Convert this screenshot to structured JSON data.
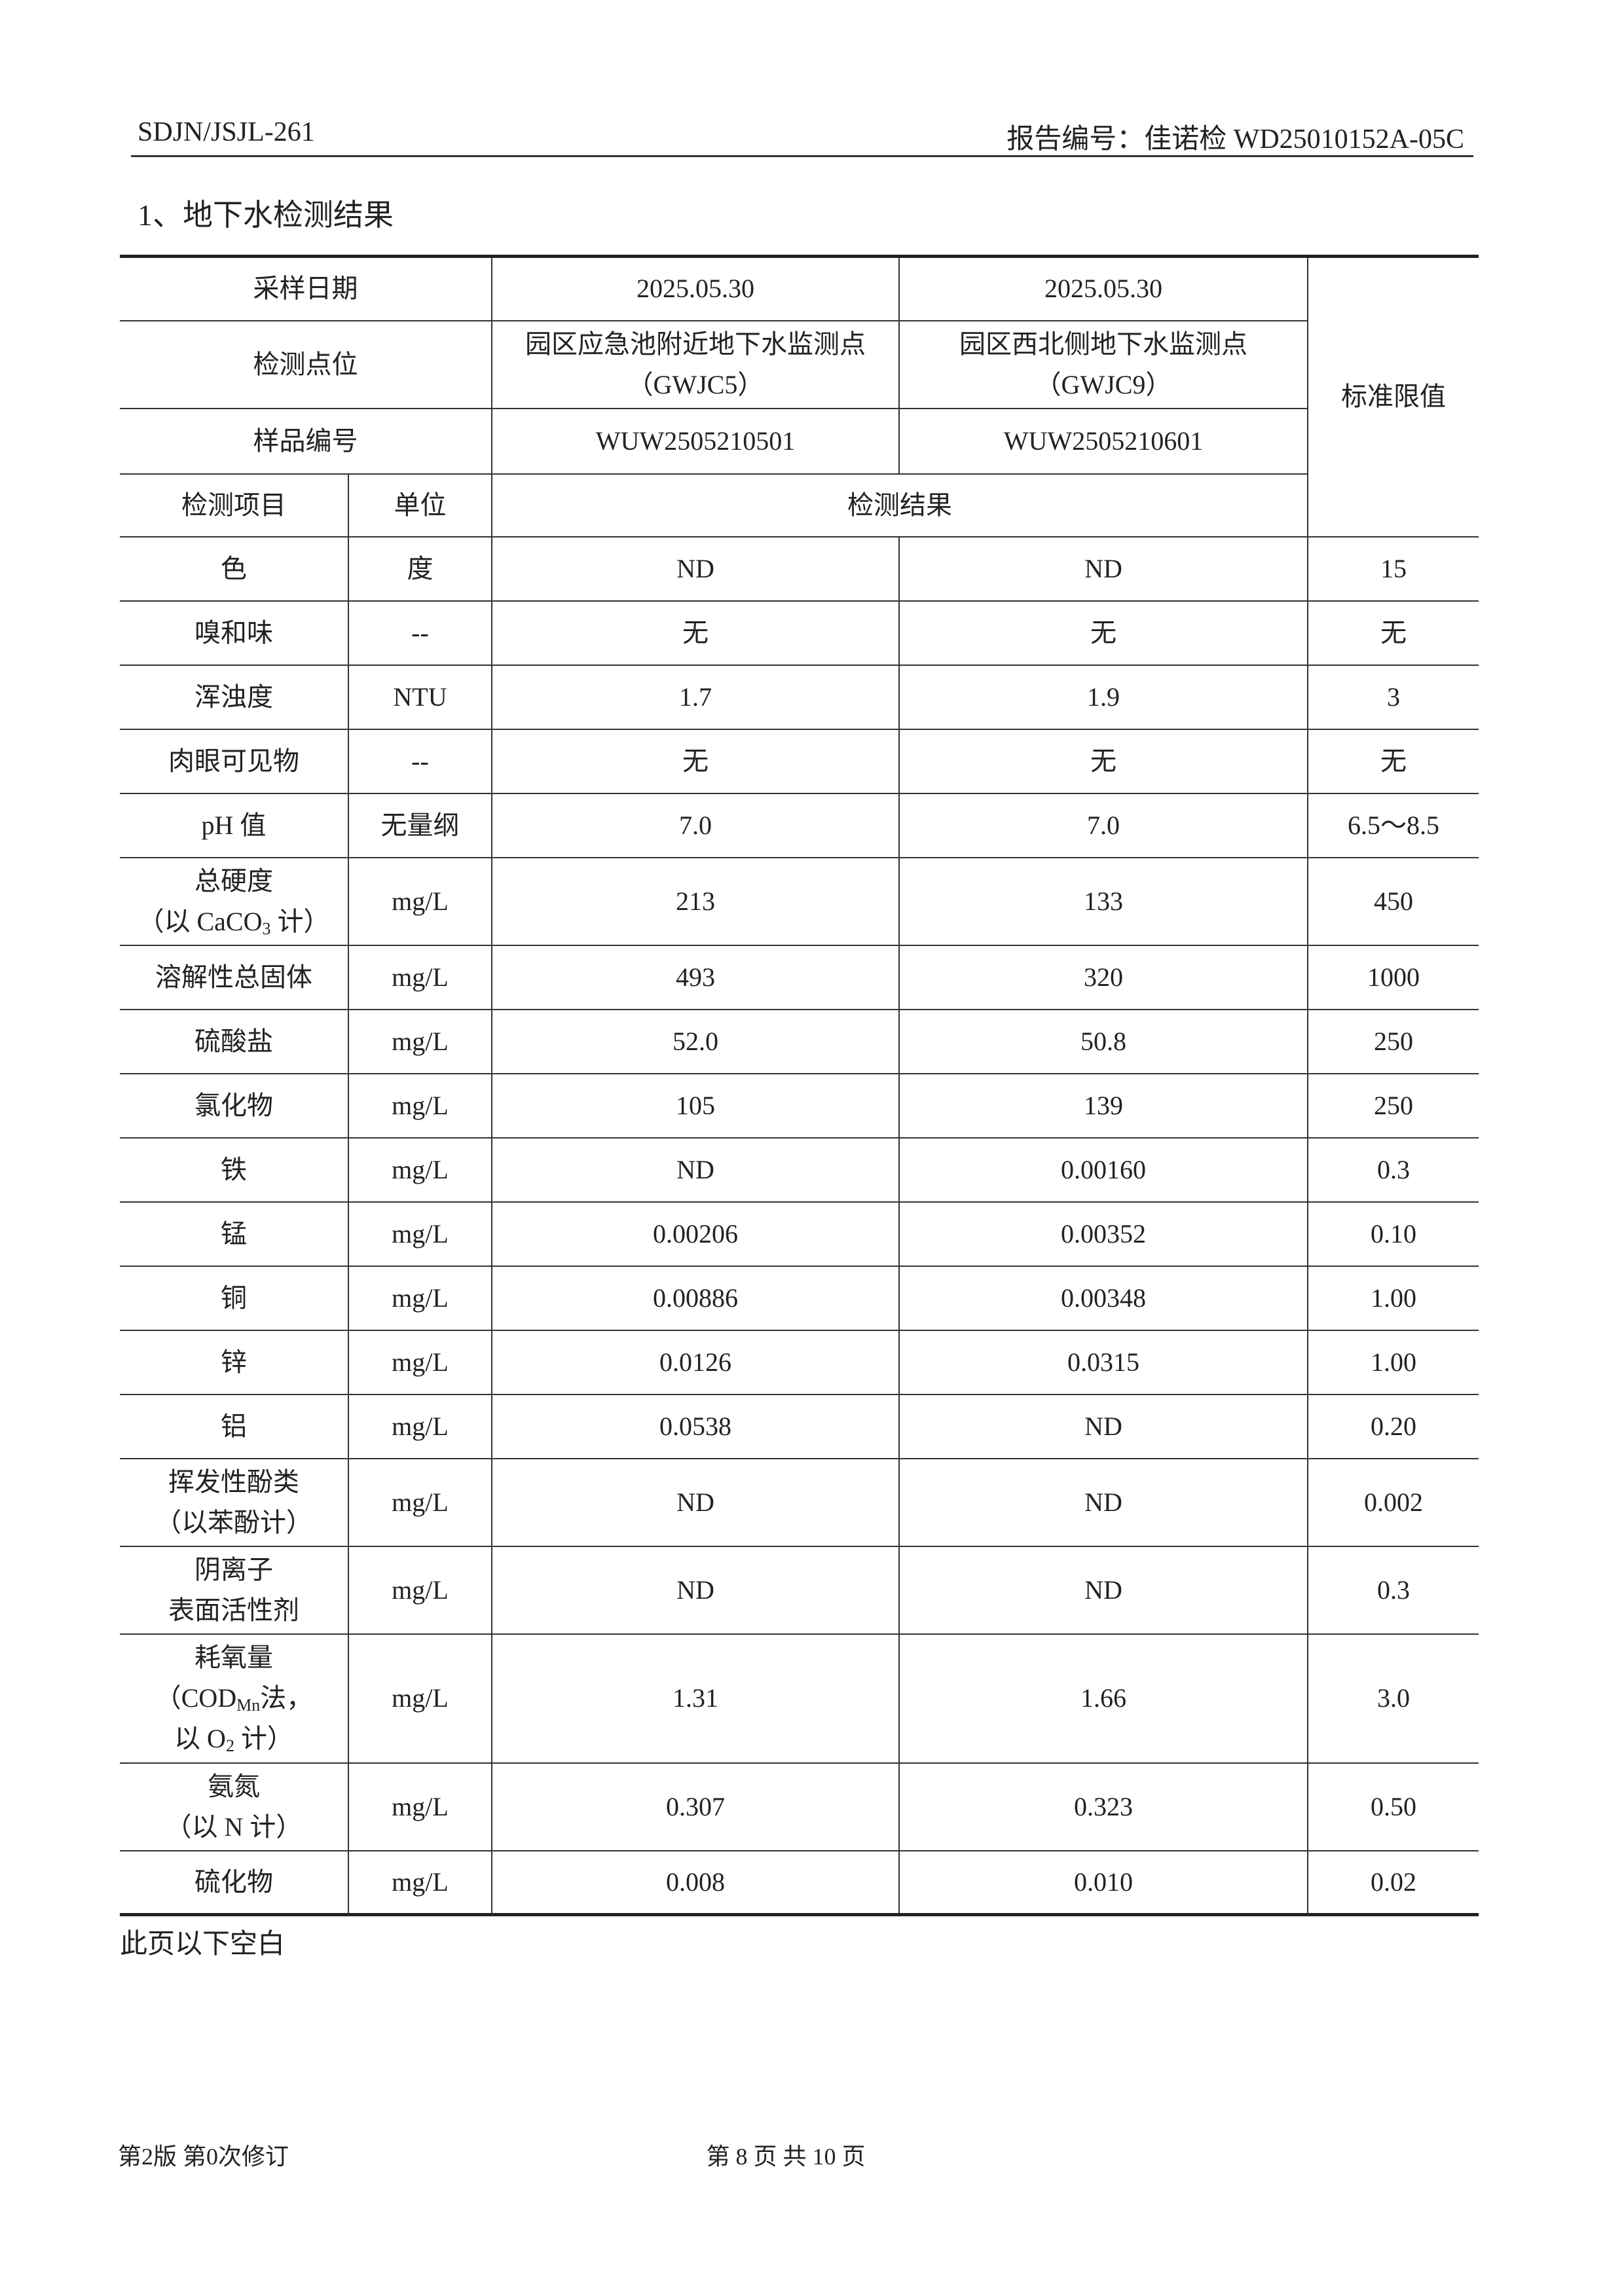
{
  "header": {
    "left": "SDJN/JSJL-261",
    "right": "报告编号：佳诺检 WD25010152A-05C"
  },
  "section_title": "1、地下水检测结果",
  "table": {
    "date_label": "采样日期",
    "dates": [
      "2025.05.30",
      "2025.05.30"
    ],
    "point_label": "检测点位",
    "points": [
      [
        "园区应急池附近地下水监测点",
        "（GWJC5）"
      ],
      [
        "园区西北侧地下水监测点",
        "（GWJC9）"
      ]
    ],
    "sample_label": "样品编号",
    "samples": [
      "WUW2505210501",
      "WUW2505210601"
    ],
    "limit_label": "标准限值",
    "col_headers": [
      "检测项目",
      "单位",
      "检测结果"
    ],
    "rows": [
      {
        "item": [
          "色"
        ],
        "unit": "度",
        "values": [
          "ND",
          "ND"
        ],
        "limit": "15"
      },
      {
        "item": [
          "嗅和味"
        ],
        "unit": "--",
        "values": [
          "无",
          "无"
        ],
        "limit": "无"
      },
      {
        "item": [
          "浑浊度"
        ],
        "unit": "NTU",
        "values": [
          "1.7",
          "1.9"
        ],
        "limit": "3"
      },
      {
        "item": [
          "肉眼可见物"
        ],
        "unit": "--",
        "values": [
          "无",
          "无"
        ],
        "limit": "无"
      },
      {
        "item": [
          "pH 值"
        ],
        "unit": "无量纲",
        "values": [
          "7.0",
          "7.0"
        ],
        "limit": "6.5～8.5"
      },
      {
        "item": [
          "总硬度",
          [
            "（以 CaCO",
            "3",
            " 计）"
          ]
        ],
        "unit": "mg/L",
        "values": [
          "213",
          "133"
        ],
        "limit": "450"
      },
      {
        "item": [
          "溶解性总固体"
        ],
        "unit": "mg/L",
        "values": [
          "493",
          "320"
        ],
        "limit": "1000"
      },
      {
        "item": [
          "硫酸盐"
        ],
        "unit": "mg/L",
        "values": [
          "52.0",
          "50.8"
        ],
        "limit": "250"
      },
      {
        "item": [
          "氯化物"
        ],
        "unit": "mg/L",
        "values": [
          "105",
          "139"
        ],
        "limit": "250"
      },
      {
        "item": [
          "铁"
        ],
        "unit": "mg/L",
        "values": [
          "ND",
          "0.00160"
        ],
        "limit": "0.3"
      },
      {
        "item": [
          "锰"
        ],
        "unit": "mg/L",
        "values": [
          "0.00206",
          "0.00352"
        ],
        "limit": "0.10"
      },
      {
        "item": [
          "铜"
        ],
        "unit": "mg/L",
        "values": [
          "0.00886",
          "0.00348"
        ],
        "limit": "1.00"
      },
      {
        "item": [
          "锌"
        ],
        "unit": "mg/L",
        "values": [
          "0.0126",
          "0.0315"
        ],
        "limit": "1.00"
      },
      {
        "item": [
          "铝"
        ],
        "unit": "mg/L",
        "values": [
          "0.0538",
          "ND"
        ],
        "limit": "0.20"
      },
      {
        "item": [
          "挥发性酚类",
          "（以苯酚计）"
        ],
        "unit": "mg/L",
        "values": [
          "ND",
          "ND"
        ],
        "limit": "0.002"
      },
      {
        "item": [
          "阴离子",
          "表面活性剂"
        ],
        "unit": "mg/L",
        "values": [
          "ND",
          "ND"
        ],
        "limit": "0.3"
      },
      {
        "item": [
          "耗氧量",
          [
            "（COD",
            "Mn",
            "法，"
          ],
          [
            "以 O",
            "2",
            " 计）"
          ]
        ],
        "unit": "mg/L",
        "values": [
          "1.31",
          "1.66"
        ],
        "limit": "3.0"
      },
      {
        "item": [
          "氨氮",
          "（以 N 计）"
        ],
        "unit": "mg/L",
        "values": [
          "0.307",
          "0.323"
        ],
        "limit": "0.50"
      },
      {
        "item": [
          "硫化物"
        ],
        "unit": "mg/L",
        "values": [
          "0.008",
          "0.010"
        ],
        "limit": "0.02"
      }
    ]
  },
  "note": "此页以下空白",
  "footer": {
    "left": "第2版 第0次修订",
    "center": "第 8 页 共 10 页"
  }
}
